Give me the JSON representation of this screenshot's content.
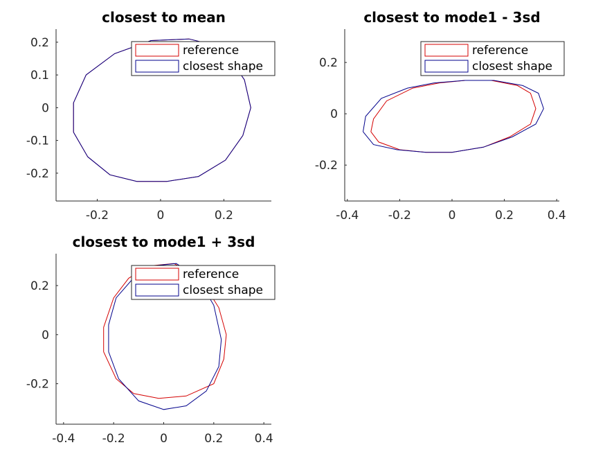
{
  "colors": {
    "reference": "#d40000",
    "closest": "#00008b"
  },
  "chart_data": [
    {
      "type": "line",
      "title": "closest to mean",
      "xlabel": "",
      "ylabel": "",
      "xlim": [
        -0.33,
        0.35
      ],
      "ylim": [
        -0.285,
        0.24
      ],
      "xticks": [
        -0.2,
        0,
        0.2
      ],
      "xtick_labels": [
        "-0.2",
        "0",
        "0.2"
      ],
      "yticks": [
        -0.2,
        -0.1,
        0,
        0.1,
        0.2
      ],
      "ytick_labels": [
        "-0.2",
        "-0.1",
        "0",
        "0.1",
        "0.2"
      ],
      "legend": [
        "reference",
        "closest shape"
      ],
      "legend_position": "top-right",
      "series": [
        {
          "name": "reference",
          "color": "#d40000",
          "x": [
            -0.275,
            -0.275,
            -0.235,
            -0.145,
            -0.03,
            0.09,
            0.195,
            0.265,
            0.285,
            0.26,
            0.205,
            0.12,
            0.02,
            -0.075,
            -0.16,
            -0.23,
            -0.275
          ],
          "y": [
            -0.075,
            0.015,
            0.1,
            0.165,
            0.205,
            0.21,
            0.185,
            0.085,
            0.0,
            -0.085,
            -0.16,
            -0.21,
            -0.225,
            -0.225,
            -0.205,
            -0.15,
            -0.075
          ]
        },
        {
          "name": "closest shape",
          "color": "#00008b",
          "x": [
            -0.275,
            -0.275,
            -0.235,
            -0.145,
            -0.03,
            0.09,
            0.195,
            0.265,
            0.285,
            0.26,
            0.205,
            0.12,
            0.02,
            -0.075,
            -0.16,
            -0.23,
            -0.275
          ],
          "y": [
            -0.075,
            0.015,
            0.1,
            0.165,
            0.205,
            0.21,
            0.185,
            0.085,
            0.0,
            -0.085,
            -0.16,
            -0.21,
            -0.225,
            -0.225,
            -0.205,
            -0.15,
            -0.075
          ]
        }
      ]
    },
    {
      "type": "line",
      "title": "closest to mode1 - 3sd",
      "xlabel": "",
      "ylabel": "",
      "xlim": [
        -0.41,
        0.41
      ],
      "ylim": [
        -0.34,
        0.33
      ],
      "xticks": [
        -0.4,
        -0.2,
        0,
        0.2,
        0.4
      ],
      "xtick_labels": [
        "-0.4",
        "-0.2",
        "0",
        "0.2",
        "0.4"
      ],
      "yticks": [
        -0.2,
        0,
        0.2
      ],
      "ytick_labels": [
        "-0.2",
        "0",
        "0.2"
      ],
      "legend": [
        "reference",
        "closest shape"
      ],
      "legend_position": "top-right",
      "series": [
        {
          "name": "reference",
          "color": "#d40000",
          "x": [
            -0.31,
            -0.3,
            -0.25,
            -0.15,
            -0.05,
            0.05,
            0.15,
            0.25,
            0.3,
            0.32,
            0.3,
            0.22,
            0.12,
            0.0,
            -0.1,
            -0.2,
            -0.28,
            -0.31
          ],
          "y": [
            -0.07,
            -0.02,
            0.05,
            0.1,
            0.12,
            0.13,
            0.13,
            0.11,
            0.08,
            0.02,
            -0.04,
            -0.09,
            -0.13,
            -0.15,
            -0.15,
            -0.14,
            -0.11,
            -0.07
          ]
        },
        {
          "name": "closest shape",
          "color": "#00008b",
          "x": [
            -0.34,
            -0.33,
            -0.27,
            -0.17,
            -0.07,
            0.05,
            0.16,
            0.27,
            0.33,
            0.35,
            0.32,
            0.23,
            0.12,
            0.0,
            -0.1,
            -0.21,
            -0.3,
            -0.34
          ],
          "y": [
            -0.07,
            -0.01,
            0.06,
            0.1,
            0.12,
            0.13,
            0.13,
            0.11,
            0.08,
            0.02,
            -0.04,
            -0.09,
            -0.13,
            -0.15,
            -0.15,
            -0.14,
            -0.12,
            -0.07
          ]
        }
      ]
    },
    {
      "type": "line",
      "title": "closest to mode1 + 3sd",
      "xlabel": "",
      "ylabel": "",
      "xlim": [
        -0.43,
        0.43
      ],
      "ylim": [
        -0.365,
        0.33
      ],
      "xticks": [
        -0.4,
        -0.2,
        0,
        0.2,
        0.4
      ],
      "xtick_labels": [
        "-0.4",
        "-0.2",
        "0",
        "0.2",
        "0.4"
      ],
      "yticks": [
        -0.2,
        0,
        0.2
      ],
      "ytick_labels": [
        "-0.2",
        "0",
        "0.2"
      ],
      "legend": [
        "reference",
        "closest shape"
      ],
      "legend_position": "top-right",
      "series": [
        {
          "name": "reference",
          "color": "#d40000",
          "x": [
            -0.24,
            -0.24,
            -0.2,
            -0.14,
            -0.06,
            0.04,
            0.14,
            0.22,
            0.25,
            0.24,
            0.2,
            0.09,
            -0.02,
            -0.12,
            -0.19,
            -0.24
          ],
          "y": [
            -0.07,
            0.03,
            0.15,
            0.23,
            0.28,
            0.29,
            0.24,
            0.11,
            0.0,
            -0.1,
            -0.2,
            -0.25,
            -0.26,
            -0.24,
            -0.18,
            -0.07
          ]
        },
        {
          "name": "closest shape",
          "color": "#00008b",
          "x": [
            -0.22,
            -0.22,
            -0.19,
            -0.13,
            -0.05,
            0.05,
            0.13,
            0.2,
            0.23,
            0.22,
            0.17,
            0.09,
            0.0,
            -0.1,
            -0.18,
            -0.22
          ],
          "y": [
            -0.07,
            0.04,
            0.15,
            0.22,
            0.28,
            0.29,
            0.24,
            0.12,
            -0.02,
            -0.13,
            -0.23,
            -0.29,
            -0.305,
            -0.27,
            -0.18,
            -0.07
          ]
        }
      ]
    }
  ]
}
